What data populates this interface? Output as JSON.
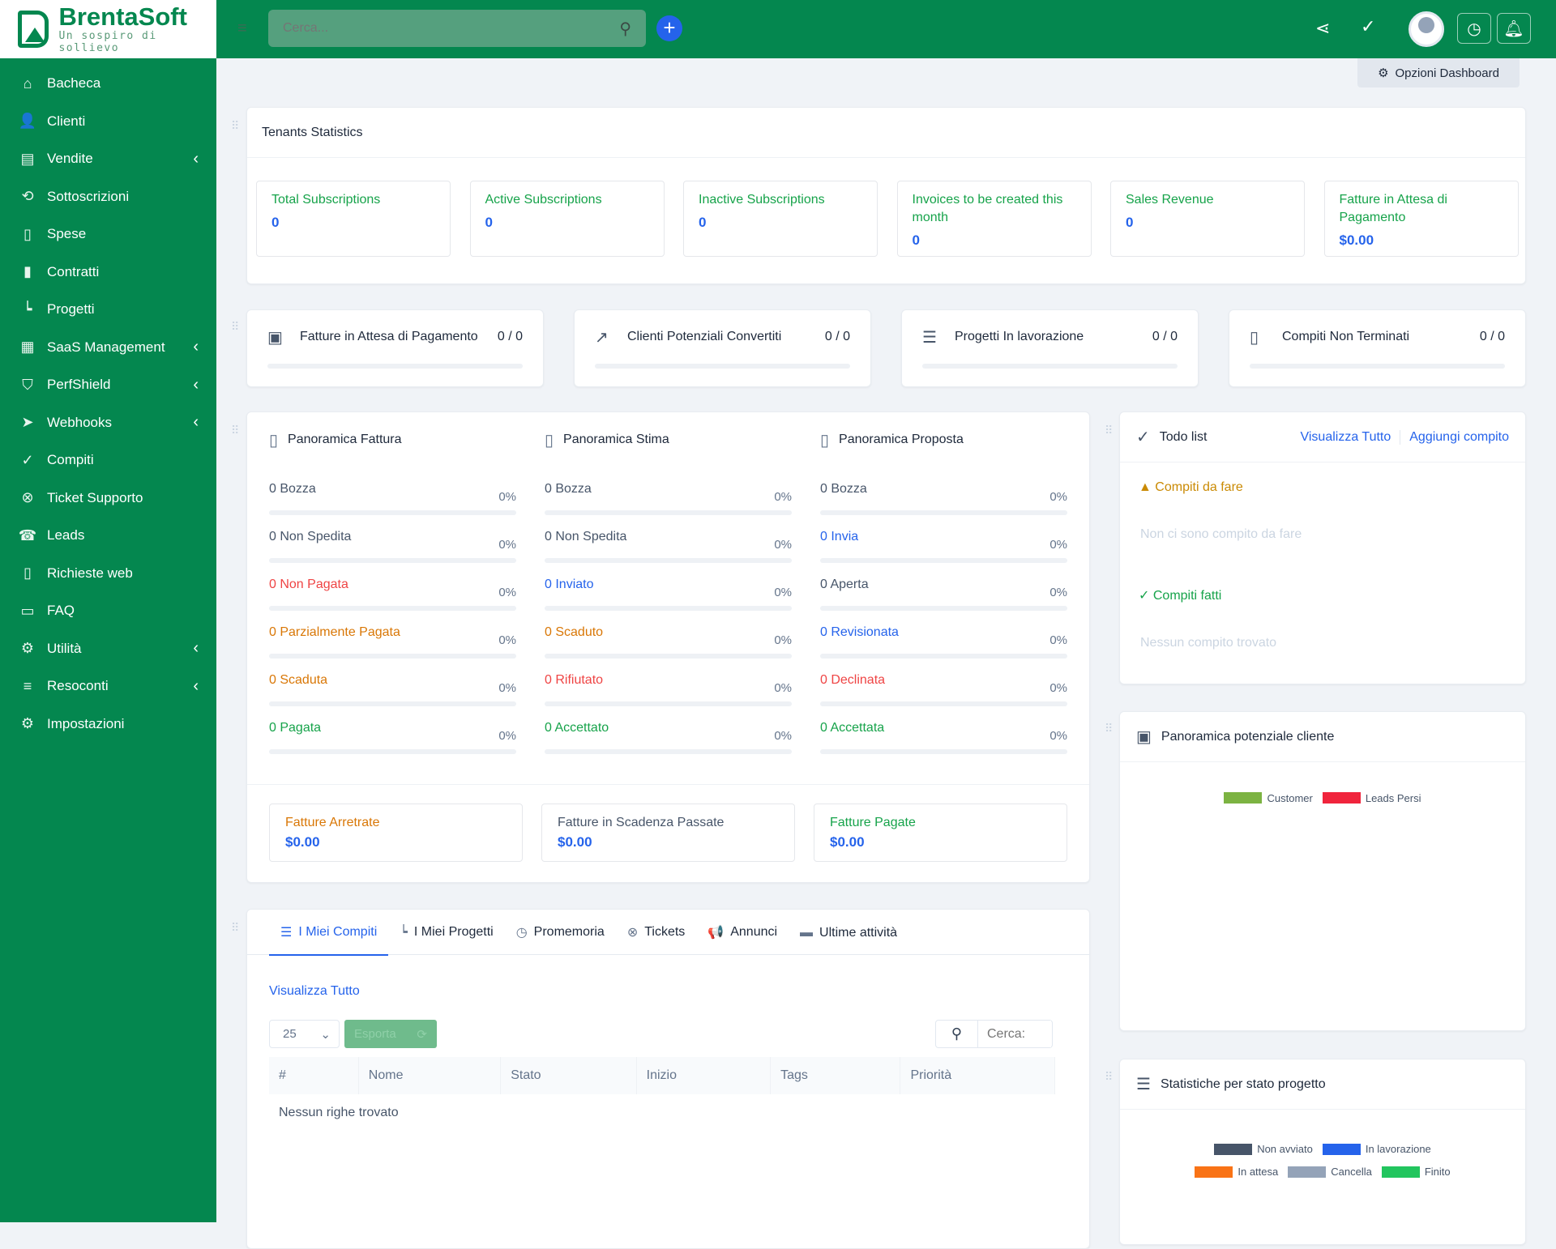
{
  "brand": {
    "name": "BrentaSoft",
    "tagline": "Un sospiro di sollievo"
  },
  "header": {
    "search_placeholder": "Cerca...",
    "add_icon": "plus-icon",
    "options_label": "Opzioni Dashboard"
  },
  "sidebar": {
    "items": [
      {
        "label": "Bacheca",
        "icon": "home-icon",
        "glyph": "⌂",
        "chevron": false
      },
      {
        "label": "Clienti",
        "icon": "user-icon",
        "glyph": "👤",
        "chevron": false
      },
      {
        "label": "Vendite",
        "icon": "receipt-icon",
        "glyph": "▤",
        "chevron": true
      },
      {
        "label": "Sottoscrizioni",
        "icon": "refresh-icon",
        "glyph": "⟲",
        "chevron": false
      },
      {
        "label": "Spese",
        "icon": "file-icon",
        "glyph": "▯",
        "chevron": false
      },
      {
        "label": "Contratti",
        "icon": "contract-icon",
        "glyph": "▮",
        "chevron": false
      },
      {
        "label": "Progetti",
        "icon": "chart-icon",
        "glyph": "┕",
        "chevron": false
      },
      {
        "label": "SaaS Management",
        "icon": "building-icon",
        "glyph": "▦",
        "chevron": true
      },
      {
        "label": "PerfShield",
        "icon": "shield-icon",
        "glyph": "⛉",
        "chevron": true
      },
      {
        "label": "Webhooks",
        "icon": "send-icon",
        "glyph": "➤",
        "chevron": true
      },
      {
        "label": "Compiti",
        "icon": "check-circle-icon",
        "glyph": "✓",
        "chevron": false
      },
      {
        "label": "Ticket Supporto",
        "icon": "lifebuoy-icon",
        "glyph": "⊗",
        "chevron": false
      },
      {
        "label": "Leads",
        "icon": "tty-icon",
        "glyph": "☎",
        "chevron": false
      },
      {
        "label": "Richieste web",
        "icon": "file-icon",
        "glyph": "▯",
        "chevron": false
      },
      {
        "label": "FAQ",
        "icon": "folder-icon",
        "glyph": "▭",
        "chevron": false
      },
      {
        "label": "Utilità",
        "icon": "cogs-icon",
        "glyph": "⚙",
        "chevron": true
      },
      {
        "label": "Resoconti",
        "icon": "list-icon",
        "glyph": "≡",
        "chevron": true
      },
      {
        "label": "Impostazioni",
        "icon": "gear-icon",
        "glyph": "⚙",
        "chevron": false
      }
    ]
  },
  "tenants": {
    "title": "Tenants Statistics",
    "stats": [
      {
        "label": "Total Subscriptions",
        "value": "0"
      },
      {
        "label": "Active Subscriptions",
        "value": "0"
      },
      {
        "label": "Inactive Subscriptions",
        "value": "0"
      },
      {
        "label": "Invoices to be created this month",
        "value": "0"
      },
      {
        "label": "Sales Revenue",
        "value": "0"
      },
      {
        "label": "Fatture in Attesa di Pagamento",
        "value": "$0.00"
      }
    ]
  },
  "kpis": [
    {
      "label": "Fatture in Attesa di Pagamento",
      "value": "0 / 0",
      "icon": "money-icon",
      "glyph": "▣",
      "progress": 0
    },
    {
      "label": "Clienti Potenziali Convertiti",
      "value": "0 / 0",
      "icon": "trend-up-icon",
      "glyph": "↗",
      "progress": 0
    },
    {
      "label": "Progetti In lavorazione",
      "value": "0 / 0",
      "icon": "sliders-icon",
      "glyph": "☰",
      "progress": 0
    },
    {
      "label": "Compiti Non Terminati",
      "value": "0 / 0",
      "icon": "file-check-icon",
      "glyph": "▯",
      "progress": 0
    }
  ],
  "overview": {
    "columns": [
      {
        "title": "Panoramica Fattura",
        "rows": [
          {
            "label": "0 Bozza",
            "pct": "0%",
            "color": "#475569"
          },
          {
            "label": "0 Non Spedita",
            "pct": "0%",
            "color": "#475569"
          },
          {
            "label": "0 Non Pagata",
            "pct": "0%",
            "color": "#ef4444"
          },
          {
            "label": "0 Parzialmente Pagata",
            "pct": "0%",
            "color": "#d97706"
          },
          {
            "label": "0 Scaduta",
            "pct": "0%",
            "color": "#d97706"
          },
          {
            "label": "0 Pagata",
            "pct": "0%",
            "color": "#16a34a"
          }
        ]
      },
      {
        "title": "Panoramica Stima",
        "rows": [
          {
            "label": "0 Bozza",
            "pct": "0%",
            "color": "#475569"
          },
          {
            "label": "0 Non Spedita",
            "pct": "0%",
            "color": "#475569"
          },
          {
            "label": "0 Inviato",
            "pct": "0%",
            "color": "#2563eb"
          },
          {
            "label": "0 Scaduto",
            "pct": "0%",
            "color": "#d97706"
          },
          {
            "label": "0 Rifiutato",
            "pct": "0%",
            "color": "#ef4444"
          },
          {
            "label": "0 Accettato",
            "pct": "0%",
            "color": "#16a34a"
          }
        ]
      },
      {
        "title": "Panoramica Proposta",
        "rows": [
          {
            "label": "0 Bozza",
            "pct": "0%",
            "color": "#475569"
          },
          {
            "label": "0 Invia",
            "pct": "0%",
            "color": "#2563eb"
          },
          {
            "label": "0 Aperta",
            "pct": "0%",
            "color": "#475569"
          },
          {
            "label": "0 Revisionata",
            "pct": "0%",
            "color": "#2563eb"
          },
          {
            "label": "0 Declinata",
            "pct": "0%",
            "color": "#ef4444"
          },
          {
            "label": "0 Accettata",
            "pct": "0%",
            "color": "#16a34a"
          }
        ]
      }
    ],
    "summary": [
      {
        "label": "Fatture Arretrate",
        "value": "$0.00",
        "color": "#d97706"
      },
      {
        "label": "Fatture in Scadenza Passate",
        "value": "$0.00",
        "color": "#475569"
      },
      {
        "label": "Fatture Pagate",
        "value": "$0.00",
        "color": "#16a34a"
      }
    ]
  },
  "todo": {
    "title": "Todo list",
    "view_all": "Visualizza Tutto",
    "add": "Aggiungi compito",
    "todo_heading": "Compiti da fare",
    "todo_empty": "Non ci sono compito da fare",
    "done_heading": "Compiti fatti",
    "done_empty": "Nessun compito trovato"
  },
  "leads_chart": {
    "title": "Panoramica potenziale cliente",
    "legend": [
      {
        "name": "Customer",
        "color": "#7cb342"
      },
      {
        "name": "Leads Persi",
        "color": "#f0243c"
      }
    ]
  },
  "project_chart": {
    "title": "Statistiche per stato progetto",
    "legend": [
      {
        "name": "Non avviato",
        "color": "#475569"
      },
      {
        "name": "In lavorazione",
        "color": "#2563eb"
      },
      {
        "name": "In attesa",
        "color": "#f97316"
      },
      {
        "name": "Cancella",
        "color": "#94a3b8"
      },
      {
        "name": "Finito",
        "color": "#22c55e"
      }
    ]
  },
  "tabs": {
    "items": [
      {
        "label": "I Miei Compiti",
        "icon": "tasks-icon",
        "glyph": "☰",
        "active": true
      },
      {
        "label": "I Miei Progetti",
        "icon": "chart-icon",
        "glyph": "┕",
        "active": false
      },
      {
        "label": "Promemoria",
        "icon": "clock-icon",
        "glyph": "◷",
        "active": false
      },
      {
        "label": "Tickets",
        "icon": "lifebuoy-icon",
        "glyph": "⊗",
        "active": false
      },
      {
        "label": "Annunci",
        "icon": "megaphone-icon",
        "glyph": "📢",
        "active": false
      },
      {
        "label": "Ultime attività",
        "icon": "window-icon",
        "glyph": "▬",
        "active": false
      }
    ],
    "view_all": "Visualizza Tutto",
    "page_size": "25",
    "export": "Esporta",
    "search_placeholder": "Cerca:",
    "columns": [
      "#",
      "Nome",
      "Stato",
      "Inizio",
      "Tags",
      "Priorità"
    ],
    "empty": "Nessun righe trovato"
  }
}
